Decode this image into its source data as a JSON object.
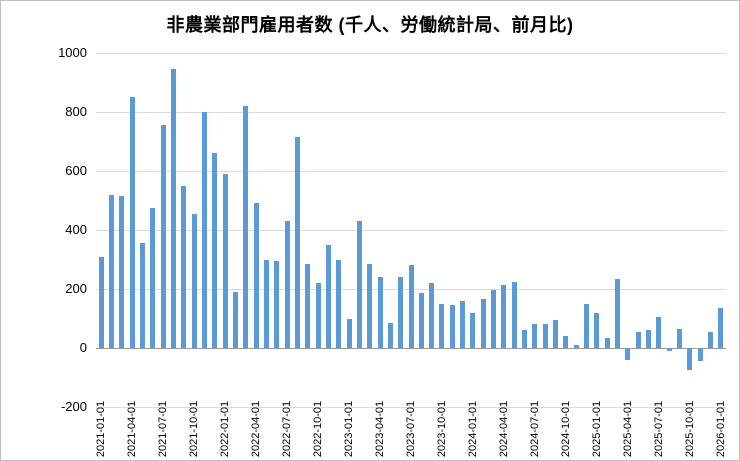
{
  "chart_data": {
    "type": "bar",
    "title": "非農業部門雇用者数 (千人、労働統計局、前月比)",
    "x": [
      "2021-01-01",
      "2021-02-01",
      "2021-03-01",
      "2021-04-01",
      "2021-05-01",
      "2021-06-01",
      "2021-07-01",
      "2021-08-01",
      "2021-09-01",
      "2021-10-01",
      "2021-11-01",
      "2021-12-01",
      "2022-01-01",
      "2022-02-01",
      "2022-03-01",
      "2022-04-01",
      "2022-05-01",
      "2022-06-01",
      "2022-07-01",
      "2022-08-01",
      "2022-09-01",
      "2022-10-01",
      "2022-11-01",
      "2022-12-01",
      "2023-01-01",
      "2023-02-01",
      "2023-03-01",
      "2023-04-01",
      "2023-05-01",
      "2023-06-01",
      "2023-07-01",
      "2023-08-01",
      "2023-09-01",
      "2023-10-01",
      "2023-11-01",
      "2023-12-01",
      "2024-01-01",
      "2024-02-01",
      "2024-03-01",
      "2024-04-01",
      "2024-05-01",
      "2024-06-01",
      "2024-07-01",
      "2024-08-01",
      "2024-09-01",
      "2024-10-01",
      "2024-11-01",
      "2024-12-01",
      "2025-01-01",
      "2025-02-01",
      "2025-03-01",
      "2025-04-01",
      "2025-05-01",
      "2025-06-01",
      "2025-07-01",
      "2025-08-01",
      "2025-09-01",
      "2025-10-01",
      "2025-11-01",
      "2025-12-01",
      "2026-01-01"
    ],
    "values": [
      310,
      520,
      515,
      850,
      355,
      475,
      755,
      945,
      550,
      455,
      800,
      660,
      590,
      190,
      820,
      490,
      300,
      295,
      430,
      715,
      285,
      220,
      350,
      300,
      100,
      430,
      285,
      240,
      85,
      240,
      280,
      185,
      220,
      150,
      145,
      160,
      120,
      165,
      195,
      215,
      225,
      60,
      80,
      80,
      95,
      40,
      10,
      150,
      120,
      35,
      235,
      -40,
      55,
      60,
      105,
      -10,
      65,
      -75,
      -45,
      55,
      135
    ],
    "xlabel": "",
    "ylabel": "",
    "ylim": [
      -200,
      1000
    ],
    "yticks": [
      -200,
      0,
      200,
      400,
      600,
      800,
      1000
    ],
    "xtick_every": 3,
    "grid": "horizontal",
    "legend": "none",
    "bar_color": "#5B9BD5",
    "background": "#FFFFFF",
    "xtick_rotation": -90
  }
}
